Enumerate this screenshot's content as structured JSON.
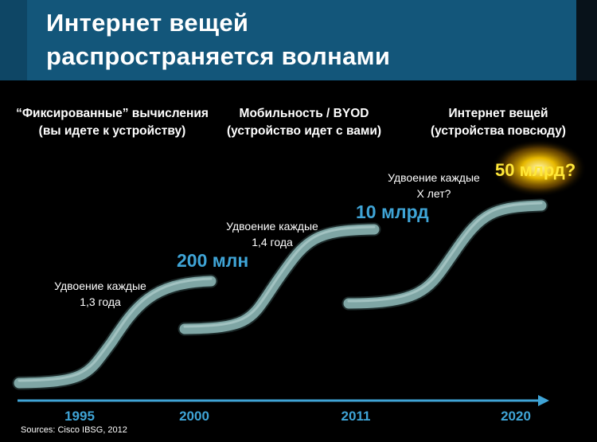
{
  "slide": {
    "title_line1": "Интернет  вещей",
    "title_line2": "распространяется  волнами"
  },
  "columns": [
    {
      "line1": "“Фиксированные” вычисления",
      "line2": "(вы идете к устройству)"
    },
    {
      "line1": "Мобильность / BYOD",
      "line2": "(устройство идет с вами)"
    },
    {
      "line1": "Интернет вещей",
      "line2": "(устройства повсюду)"
    }
  ],
  "waves": [
    {
      "note_line1": "Удвоение каждые",
      "note_line2": "1,3 года",
      "value": "200 млн"
    },
    {
      "note_line1": "Удвоение каждые",
      "note_line2": "1,4 года",
      "value": "10 млрд"
    },
    {
      "note_line1": "Удвоение каждые",
      "note_line2": "X лет?",
      "value": "50 млрд?"
    }
  ],
  "timeline": {
    "years": [
      "1995",
      "2000",
      "2011",
      "2020"
    ]
  },
  "source": "Sources: Cisco IBSG, 2012",
  "colors": {
    "title_bar": "#13567a",
    "value_blue": "#3fa4d6",
    "highlight_yellow": "#ffe838",
    "wave": "#7fa6a5",
    "arrow": "#3fa4d6"
  }
}
